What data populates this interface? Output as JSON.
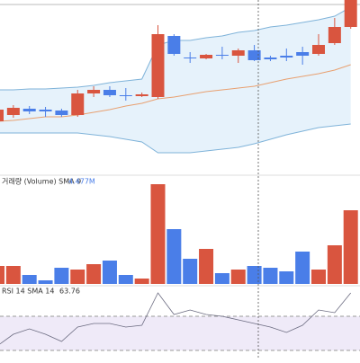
{
  "chart_data": [
    {
      "type": "candlestick",
      "open": [
        65,
        72,
        79,
        78,
        77,
        72,
        96,
        100,
        94,
        93,
        92,
        160,
        136,
        135,
        139,
        138,
        144,
        136,
        138,
        142,
        140,
        152,
        170
      ],
      "close": [
        78,
        80,
        76,
        76,
        72,
        96,
        100,
        94,
        93,
        95,
        162,
        140,
        135,
        139,
        138,
        144,
        133,
        134,
        136,
        138,
        150,
        170,
        200
      ],
      "high": [
        82,
        83,
        82,
        81,
        79,
        100,
        104,
        104,
        102,
        97,
        172,
        162,
        142,
        140,
        148,
        146,
        150,
        138,
        146,
        148,
        162,
        180,
        205
      ],
      "low": [
        63,
        69,
        73,
        70,
        70,
        70,
        92,
        92,
        88,
        92,
        90,
        138,
        130,
        134,
        134,
        130,
        132,
        132,
        132,
        128,
        138,
        150,
        168
      ],
      "up_color": "#d9553f",
      "down_color": "#4a7ee8",
      "ylim": [
        0,
        200
      ],
      "series": [
        {
          "color": "#7fb3d9",
          "values": [
            100,
            100,
            101,
            101,
            102,
            103,
            105,
            108,
            110,
            112,
            150,
            155,
            155,
            158,
            160,
            164,
            166,
            170,
            172,
            175,
            178,
            182,
            192
          ]
        },
        {
          "color": "#e8a070",
          "values": [
            65,
            66,
            68,
            70,
            70,
            72,
            75,
            78,
            82,
            85,
            90,
            92,
            95,
            98,
            100,
            102,
            104,
            108,
            112,
            115,
            118,
            122,
            128
          ]
        },
        {
          "color": "#7fb3d9",
          "values": [
            52,
            52,
            52,
            52,
            52,
            52,
            50,
            48,
            45,
            42,
            30,
            30,
            30,
            32,
            34,
            36,
            40,
            45,
            50,
            54,
            58,
            60,
            62
          ]
        }
      ],
      "band_fill": "#e6f2fb"
    },
    {
      "type": "bar",
      "title": "거래량 (Volume) SMA 9",
      "subtitle": "4.477M",
      "values": [
        20,
        20,
        10,
        4,
        18,
        16,
        22,
        26,
        10,
        6,
        111,
        61,
        28,
        39,
        12,
        16,
        20,
        18,
        14,
        36,
        16,
        43,
        82
      ],
      "ylim": [
        0,
        116
      ]
    },
    {
      "type": "line",
      "title": "RSI 14 SMA 14",
      "subtitle": "63.76",
      "values": [
        15,
        28,
        34,
        28,
        20,
        36,
        40,
        40,
        36,
        38,
        74,
        50,
        55,
        50,
        48,
        44,
        40,
        36,
        30,
        38,
        55,
        52,
        74
      ],
      "color": "#6b6b80",
      "ylim": [
        0,
        80
      ],
      "upper_band": 48,
      "lower_band": 10,
      "band_color": "#efeaf8"
    }
  ]
}
